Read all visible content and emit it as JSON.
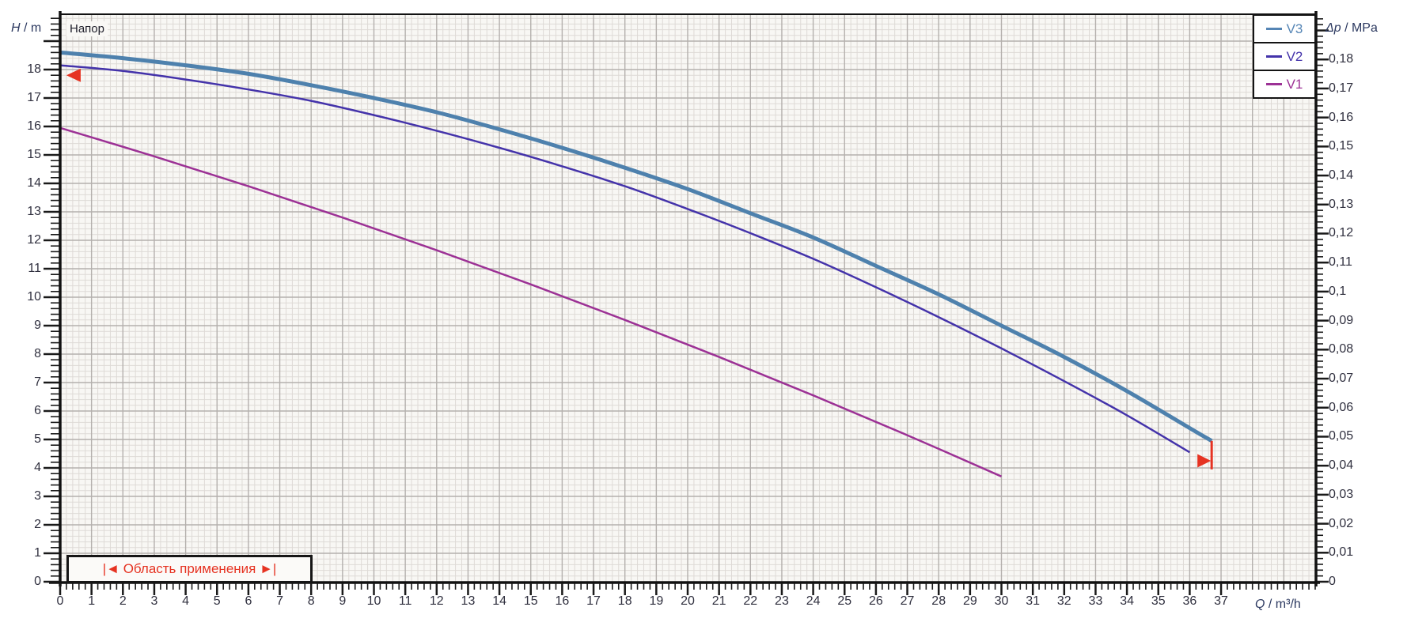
{
  "chart_data": {
    "type": "line",
    "title": "Напор",
    "xlabel": {
      "symbol": "Q",
      "unit": " / m³/h"
    },
    "ylabel_left": {
      "symbol": "H",
      "unit": " / m"
    },
    "ylabel_right": {
      "symbol": "Δp",
      "unit": " / MPa"
    },
    "grid": true,
    "x_axis": {
      "min": 0,
      "max": 40,
      "major_step": 1,
      "minor_step": 0.2,
      "labeled_max": 37,
      "tick_labels": [
        "0",
        "1",
        "2",
        "3",
        "4",
        "5",
        "6",
        "7",
        "8",
        "9",
        "10",
        "11",
        "12",
        "13",
        "14",
        "15",
        "16",
        "17",
        "18",
        "19",
        "20",
        "21",
        "22",
        "23",
        "24",
        "25",
        "26",
        "27",
        "28",
        "29",
        "30",
        "31",
        "32",
        "33",
        "34",
        "35",
        "36",
        "37"
      ]
    },
    "y_axis_left": {
      "min": 0,
      "max": 20,
      "major_step": 1,
      "minor_step": 0.2,
      "labeled_max": 18,
      "tick_labels": [
        "0",
        "1",
        "2",
        "3",
        "4",
        "5",
        "6",
        "7",
        "8",
        "9",
        "10",
        "11",
        "12",
        "13",
        "14",
        "15",
        "16",
        "17",
        "18"
      ]
    },
    "y_axis_right": {
      "min": 0,
      "max": 0.196,
      "major_step": 0.01,
      "minor_step": 0.002,
      "m_per_mpa": 101.97,
      "tick_labels": [
        "0",
        "0,01",
        "0,02",
        "0,03",
        "0,04",
        "0,05",
        "0,06",
        "0,07",
        "0,08",
        "0,09",
        "0,1",
        "0,11",
        "0,12",
        "0,13",
        "0,14",
        "0,15",
        "0,16",
        "0,17",
        "0,18"
      ]
    },
    "legend": {
      "position": "top-right",
      "items": [
        {
          "label": "V3",
          "color": "#5585b5"
        },
        {
          "label": "V2",
          "color": "#4433aa"
        },
        {
          "label": "V1",
          "color": "#9c3195"
        }
      ]
    },
    "series": [
      {
        "name": "V3",
        "color": "#4e81ad",
        "width": 5,
        "points": [
          [
            0,
            18.6
          ],
          [
            2,
            18.4
          ],
          [
            4,
            18.15
          ],
          [
            6,
            17.85
          ],
          [
            8,
            17.45
          ],
          [
            10,
            17.0
          ],
          [
            12,
            16.5
          ],
          [
            14,
            15.9
          ],
          [
            16,
            15.25
          ],
          [
            18,
            14.55
          ],
          [
            20,
            13.8
          ],
          [
            22,
            12.95
          ],
          [
            24,
            12.1
          ],
          [
            26,
            11.1
          ],
          [
            28,
            10.1
          ],
          [
            30,
            9.0
          ],
          [
            32,
            7.9
          ],
          [
            34,
            6.7
          ],
          [
            36,
            5.4
          ],
          [
            36.7,
            4.95
          ]
        ]
      },
      {
        "name": "V2",
        "color": "#4433aa",
        "width": 2.5,
        "points": [
          [
            0,
            18.15
          ],
          [
            2,
            17.95
          ],
          [
            4,
            17.65
          ],
          [
            6,
            17.3
          ],
          [
            8,
            16.9
          ],
          [
            10,
            16.4
          ],
          [
            12,
            15.85
          ],
          [
            14,
            15.25
          ],
          [
            16,
            14.6
          ],
          [
            18,
            13.9
          ],
          [
            20,
            13.1
          ],
          [
            22,
            12.25
          ],
          [
            24,
            11.35
          ],
          [
            26,
            10.35
          ],
          [
            28,
            9.3
          ],
          [
            30,
            8.2
          ],
          [
            32,
            7.05
          ],
          [
            34,
            5.85
          ],
          [
            36,
            4.55
          ]
        ]
      },
      {
        "name": "V1",
        "color": "#9c3195",
        "width": 2.5,
        "points": [
          [
            0,
            15.95
          ],
          [
            3,
            14.95
          ],
          [
            6,
            13.9
          ],
          [
            9,
            12.8
          ],
          [
            12,
            11.65
          ],
          [
            15,
            10.45
          ],
          [
            18,
            9.2
          ],
          [
            21,
            7.9
          ],
          [
            24,
            6.55
          ],
          [
            27,
            5.15
          ],
          [
            30,
            3.7
          ]
        ]
      }
    ],
    "annotations": {
      "color": "#e63322",
      "range_label": "|◄ Область применения ►|",
      "range_box": {
        "q_from": 0.2,
        "q_to": 8.05
      },
      "left_arrow": {
        "q": 0.2,
        "h": 17.8
      },
      "right_marker": {
        "q": 36.7,
        "h_top": 4.95,
        "h_bottom": 3.95,
        "arrow_h": 4.25
      }
    }
  }
}
